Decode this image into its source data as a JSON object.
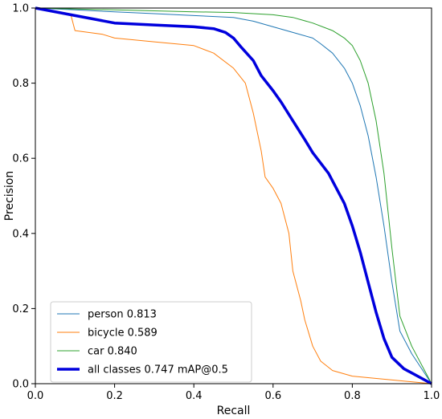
{
  "chart_data": {
    "type": "line",
    "title": "",
    "xlabel": "Recall",
    "ylabel": "Precision",
    "xlim": [
      0,
      1
    ],
    "ylim": [
      0,
      1
    ],
    "xticks": [
      "0.0",
      "0.2",
      "0.4",
      "0.6",
      "0.8",
      "1.0"
    ],
    "yticks": [
      "0.0",
      "0.2",
      "0.4",
      "0.6",
      "0.8",
      "1.0"
    ],
    "grid": false,
    "legend_position": "lower-left",
    "series": [
      {
        "name": "person 0.813",
        "color": "#1f77b4",
        "width": 1,
        "x": [
          0.0,
          0.1,
          0.2,
          0.3,
          0.4,
          0.5,
          0.55,
          0.6,
          0.65,
          0.7,
          0.72,
          0.75,
          0.78,
          0.8,
          0.82,
          0.84,
          0.86,
          0.88,
          0.9,
          0.92,
          0.95,
          1.0
        ],
        "y": [
          1.0,
          0.995,
          0.99,
          0.985,
          0.98,
          0.975,
          0.965,
          0.95,
          0.935,
          0.92,
          0.905,
          0.88,
          0.84,
          0.8,
          0.74,
          0.66,
          0.55,
          0.42,
          0.27,
          0.14,
          0.08,
          0.0
        ]
      },
      {
        "name": "bicycle 0.589",
        "color": "#ff7f0e",
        "width": 1,
        "x": [
          0.0,
          0.09,
          0.1,
          0.17,
          0.2,
          0.25,
          0.3,
          0.4,
          0.45,
          0.5,
          0.53,
          0.55,
          0.57,
          0.58,
          0.6,
          0.62,
          0.64,
          0.65,
          0.67,
          0.68,
          0.7,
          0.72,
          0.75,
          0.8,
          1.0
        ],
        "y": [
          1.0,
          0.98,
          0.94,
          0.93,
          0.92,
          0.915,
          0.91,
          0.9,
          0.88,
          0.84,
          0.8,
          0.72,
          0.62,
          0.55,
          0.52,
          0.48,
          0.4,
          0.3,
          0.22,
          0.17,
          0.1,
          0.06,
          0.035,
          0.02,
          0.0
        ]
      },
      {
        "name": "car 0.840",
        "color": "#2ca02c",
        "width": 1,
        "x": [
          0.0,
          0.2,
          0.4,
          0.5,
          0.6,
          0.65,
          0.7,
          0.75,
          0.78,
          0.8,
          0.82,
          0.84,
          0.86,
          0.88,
          0.9,
          0.92,
          0.95,
          1.0
        ],
        "y": [
          1.0,
          0.995,
          0.99,
          0.988,
          0.982,
          0.975,
          0.96,
          0.94,
          0.92,
          0.9,
          0.86,
          0.8,
          0.7,
          0.56,
          0.36,
          0.18,
          0.1,
          0.0
        ]
      },
      {
        "name": "all classes 0.747 mAP@0.5",
        "color": "#0000dd",
        "width": 3.5,
        "x": [
          0.0,
          0.1,
          0.15,
          0.2,
          0.3,
          0.4,
          0.45,
          0.48,
          0.5,
          0.52,
          0.55,
          0.57,
          0.6,
          0.62,
          0.65,
          0.68,
          0.7,
          0.74,
          0.78,
          0.8,
          0.82,
          0.84,
          0.86,
          0.88,
          0.9,
          0.93,
          1.0
        ],
        "y": [
          1.0,
          0.98,
          0.97,
          0.96,
          0.955,
          0.95,
          0.945,
          0.935,
          0.92,
          0.895,
          0.86,
          0.82,
          0.78,
          0.75,
          0.7,
          0.65,
          0.615,
          0.56,
          0.48,
          0.42,
          0.35,
          0.27,
          0.19,
          0.12,
          0.07,
          0.04,
          0.0
        ]
      }
    ]
  }
}
